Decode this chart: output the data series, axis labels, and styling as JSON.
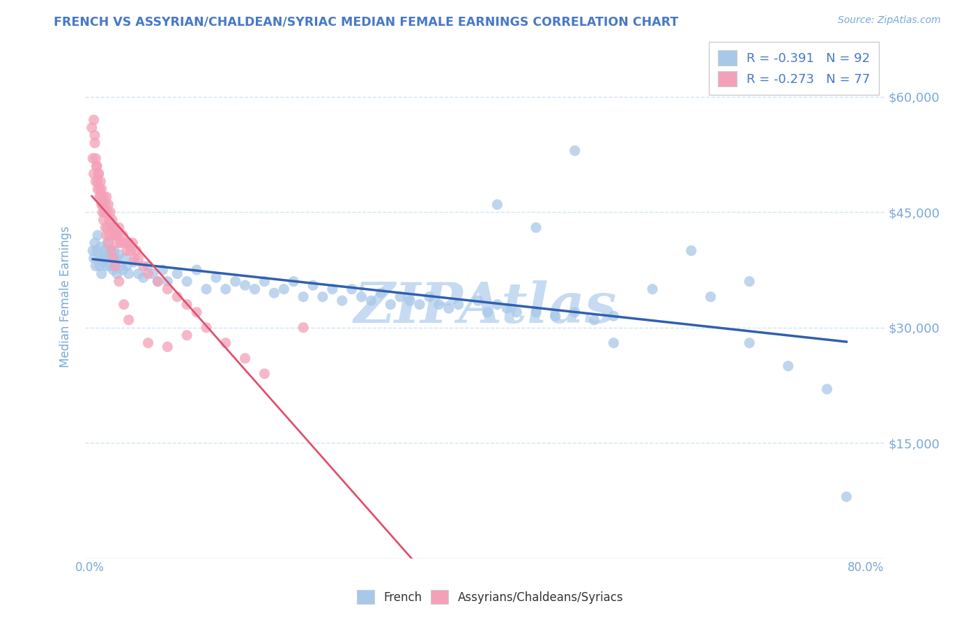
{
  "title": "FRENCH VS ASSYRIAN/CHALDEAN/SYRIAC MEDIAN FEMALE EARNINGS CORRELATION CHART",
  "source": "Source: ZipAtlas.com",
  "ylabel": "Median Female Earnings",
  "xlim": [
    -0.005,
    0.82
  ],
  "ylim": [
    0,
    68000
  ],
  "yticks": [
    0,
    15000,
    30000,
    45000,
    60000
  ],
  "ytick_labels": [
    "",
    "$15,000",
    "$30,000",
    "$45,000",
    "$60,000"
  ],
  "legend_r1": "R = -0.391",
  "legend_n1": "N = 92",
  "legend_r2": "R = -0.273",
  "legend_n2": "N = 77",
  "blue_color": "#a8c8e8",
  "pink_color": "#f4a0b8",
  "blue_line_color": "#3060b0",
  "pink_line_color": "#e05070",
  "watermark": "ZIPAtlas",
  "watermark_color": "#c0d8f0",
  "title_color": "#4878c8",
  "source_color": "#78a8d8",
  "axis_color": "#78a8d8",
  "tick_color": "#78a8d8",
  "grid_color": "#d0e4f4",
  "legend_text_color": "#4878c8",
  "bottom_legend_color": "#333333",
  "french_x": [
    0.003,
    0.004,
    0.005,
    0.006,
    0.007,
    0.008,
    0.009,
    0.01,
    0.011,
    0.012,
    0.013,
    0.014,
    0.015,
    0.016,
    0.017,
    0.018,
    0.019,
    0.02,
    0.021,
    0.022,
    0.023,
    0.024,
    0.025,
    0.026,
    0.027,
    0.028,
    0.03,
    0.032,
    0.034,
    0.036,
    0.038,
    0.04,
    0.045,
    0.05,
    0.055,
    0.06,
    0.065,
    0.07,
    0.075,
    0.08,
    0.09,
    0.1,
    0.11,
    0.12,
    0.13,
    0.14,
    0.15,
    0.16,
    0.17,
    0.18,
    0.19,
    0.2,
    0.21,
    0.22,
    0.23,
    0.24,
    0.25,
    0.26,
    0.27,
    0.28,
    0.29,
    0.3,
    0.31,
    0.32,
    0.33,
    0.34,
    0.35,
    0.36,
    0.37,
    0.38,
    0.4,
    0.41,
    0.42,
    0.43,
    0.44,
    0.46,
    0.48,
    0.5,
    0.52,
    0.54,
    0.46,
    0.5,
    0.54,
    0.58,
    0.42,
    0.62,
    0.64,
    0.68,
    0.72,
    0.76,
    0.68,
    0.78
  ],
  "french_y": [
    40000,
    39000,
    41000,
    38000,
    40000,
    42000,
    39500,
    38000,
    40500,
    37000,
    39000,
    38500,
    40000,
    39000,
    38000,
    41000,
    40000,
    39500,
    38000,
    40000,
    39000,
    37500,
    40000,
    38500,
    39000,
    37000,
    39500,
    38000,
    37500,
    39000,
    38000,
    37000,
    38500,
    37000,
    36500,
    38000,
    37000,
    36000,
    37500,
    36000,
    37000,
    36000,
    37500,
    35000,
    36500,
    35000,
    36000,
    35500,
    35000,
    36000,
    34500,
    35000,
    36000,
    34000,
    35500,
    34000,
    35000,
    33500,
    35000,
    34000,
    33500,
    34500,
    33000,
    34000,
    33500,
    33000,
    34000,
    33000,
    32500,
    33000,
    33500,
    32000,
    33000,
    32500,
    32000,
    32000,
    31500,
    32000,
    31000,
    31500,
    43000,
    53000,
    28000,
    35000,
    46000,
    40000,
    34000,
    36000,
    25000,
    22000,
    28000,
    8000
  ],
  "pink_x": [
    0.002,
    0.003,
    0.004,
    0.005,
    0.006,
    0.007,
    0.008,
    0.009,
    0.01,
    0.011,
    0.012,
    0.013,
    0.014,
    0.015,
    0.016,
    0.017,
    0.018,
    0.019,
    0.02,
    0.021,
    0.022,
    0.023,
    0.024,
    0.025,
    0.026,
    0.027,
    0.028,
    0.029,
    0.03,
    0.032,
    0.034,
    0.036,
    0.038,
    0.04,
    0.042,
    0.044,
    0.046,
    0.048,
    0.05,
    0.055,
    0.06,
    0.07,
    0.08,
    0.09,
    0.1,
    0.11,
    0.12,
    0.14,
    0.16,
    0.18,
    0.004,
    0.005,
    0.006,
    0.007,
    0.008,
    0.009,
    0.01,
    0.011,
    0.012,
    0.013,
    0.014,
    0.015,
    0.016,
    0.017,
    0.018,
    0.019,
    0.02,
    0.022,
    0.024,
    0.026,
    0.03,
    0.035,
    0.04,
    0.06,
    0.08,
    0.1,
    0.22
  ],
  "pink_y": [
    56000,
    52000,
    50000,
    54000,
    49000,
    51000,
    48000,
    50000,
    47000,
    49000,
    48000,
    46000,
    47000,
    45000,
    46000,
    47000,
    45000,
    46000,
    44000,
    45000,
    43000,
    44000,
    43000,
    42000,
    43000,
    42000,
    41000,
    42000,
    43000,
    41000,
    42000,
    41000,
    40000,
    41000,
    40000,
    41000,
    39000,
    40000,
    39000,
    38000,
    37000,
    36000,
    35000,
    34000,
    33000,
    32000,
    30000,
    28000,
    26000,
    24000,
    57000,
    55000,
    52000,
    51000,
    49000,
    50000,
    48000,
    47000,
    46000,
    45000,
    44000,
    45000,
    43000,
    42000,
    43000,
    41000,
    42000,
    40000,
    39000,
    38000,
    36000,
    33000,
    31000,
    28000,
    27500,
    29000,
    30000
  ]
}
